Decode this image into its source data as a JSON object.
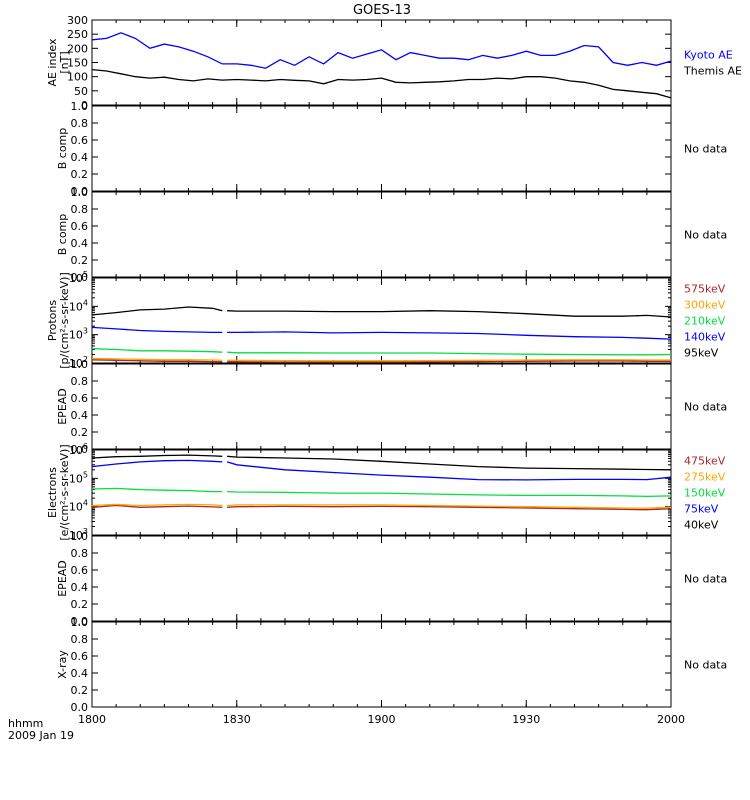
{
  "title": "GOES-13",
  "footer": {
    "time_label": "hhmm",
    "date_label": "2009 Jan 19"
  },
  "x_axis": {
    "range": [
      0,
      120
    ],
    "tick_values": [
      0,
      30,
      60,
      90,
      120
    ],
    "tick_labels": [
      "1800",
      "1830",
      "1900",
      "1930",
      "2000"
    ],
    "unit_note": "minutes after 18:00 UT"
  },
  "chart_data": [
    {
      "type": "line",
      "id": "ae",
      "ylabel": [
        "AE index",
        "[nT]"
      ],
      "ylim": [
        0,
        300
      ],
      "yticks": [
        0,
        50,
        100,
        150,
        200,
        250,
        300
      ],
      "ytick_labels": [
        "0",
        "50",
        "100",
        "150",
        "200",
        "250",
        "300"
      ],
      "x": [
        0,
        3,
        6,
        9,
        12,
        15,
        18,
        21,
        24,
        27,
        30,
        33,
        36,
        39,
        42,
        45,
        48,
        51,
        54,
        57,
        60,
        63,
        66,
        69,
        72,
        75,
        78,
        81,
        84,
        87,
        90,
        93,
        96,
        99,
        102,
        105,
        108,
        111,
        114,
        117,
        120
      ],
      "series": [
        {
          "name": "Kyoto AE",
          "color": "#0000ff",
          "values": [
            230,
            235,
            255,
            235,
            200,
            215,
            205,
            190,
            170,
            145,
            145,
            140,
            130,
            160,
            140,
            170,
            145,
            185,
            165,
            180,
            195,
            160,
            185,
            175,
            165,
            165,
            160,
            175,
            165,
            175,
            190,
            175,
            175,
            190,
            210,
            205,
            150,
            140,
            150,
            140,
            155
          ]
        },
        {
          "name": "Themis AE",
          "color": "#000000",
          "values": [
            125,
            120,
            110,
            100,
            95,
            98,
            90,
            85,
            92,
            88,
            90,
            88,
            85,
            90,
            87,
            85,
            75,
            90,
            88,
            90,
            95,
            80,
            78,
            80,
            82,
            85,
            90,
            90,
            95,
            92,
            100,
            100,
            95,
            85,
            80,
            70,
            55,
            50,
            45,
            40,
            25
          ]
        }
      ]
    },
    {
      "type": "line",
      "id": "bcomp1",
      "ylabel": [
        "B comp"
      ],
      "ylim": [
        0,
        1
      ],
      "yticks": [
        0,
        0.2,
        0.4,
        0.6,
        0.8,
        1.0
      ],
      "ytick_labels": [
        "0.0",
        "0.2",
        "0.4",
        "0.6",
        "0.8",
        "1.0"
      ],
      "note": "No data",
      "series": []
    },
    {
      "type": "line",
      "id": "bcomp2",
      "ylabel": [
        "B comp"
      ],
      "ylim": [
        0,
        1
      ],
      "yticks": [
        0,
        0.2,
        0.4,
        0.6,
        0.8,
        1.0
      ],
      "ytick_labels": [
        "0.0",
        "0.2",
        "0.4",
        "0.6",
        "0.8",
        "1.0"
      ],
      "note": "No data",
      "series": []
    },
    {
      "type": "line",
      "id": "protons",
      "scale": "log",
      "ylabel": [
        "Protons",
        "[p/(cm²-s-sr-keV)]"
      ],
      "ylim": [
        100,
        100000
      ],
      "yticks": [
        100,
        1000,
        10000,
        100000
      ],
      "ytick_labels": [
        [
          "10",
          "2"
        ],
        [
          "10",
          "3"
        ],
        [
          "10",
          "4"
        ],
        [
          "10",
          "5"
        ]
      ],
      "gap": [
        27,
        28
      ],
      "x": [
        0,
        5,
        10,
        15,
        20,
        25,
        27,
        28,
        30,
        40,
        50,
        60,
        70,
        80,
        90,
        100,
        110,
        115,
        120
      ],
      "series": [
        {
          "name": "575keV",
          "color": "#a52a2a",
          "values": [
            130,
            125,
            120,
            115,
            115,
            112,
            110,
            110,
            110,
            108,
            108,
            108,
            110,
            112,
            115,
            118,
            118,
            115,
            115
          ]
        },
        {
          "name": "300keV",
          "color": "#ffa500",
          "values": [
            145,
            140,
            135,
            130,
            130,
            128,
            125,
            125,
            125,
            122,
            120,
            120,
            122,
            125,
            128,
            130,
            130,
            128,
            128
          ]
        },
        {
          "name": "210keV",
          "color": "#00e040",
          "values": [
            320,
            300,
            270,
            270,
            260,
            250,
            240,
            240,
            230,
            230,
            225,
            225,
            225,
            215,
            205,
            200,
            195,
            195,
            200
          ]
        },
        {
          "name": "140keV",
          "color": "#0000ff",
          "values": [
            1800,
            1600,
            1400,
            1300,
            1250,
            1200,
            1200,
            1200,
            1200,
            1250,
            1150,
            1200,
            1150,
            1100,
            950,
            850,
            800,
            750,
            700
          ]
        },
        {
          "name": "95keV",
          "color": "#000000",
          "values": [
            5000,
            6000,
            7500,
            8000,
            9500,
            8500,
            7000,
            7000,
            6800,
            6800,
            6500,
            6500,
            7000,
            6500,
            5500,
            4500,
            4500,
            4800,
            4200
          ]
        }
      ]
    },
    {
      "type": "line",
      "id": "epead1",
      "ylabel": [
        "EPEAD"
      ],
      "ylim": [
        0,
        1
      ],
      "yticks": [
        0,
        0.2,
        0.4,
        0.6,
        0.8,
        1.0
      ],
      "ytick_labels": [
        "0.0",
        "0.2",
        "0.4",
        "0.6",
        "0.8",
        "1.0"
      ],
      "note": "No data",
      "series": []
    },
    {
      "type": "line",
      "id": "electrons",
      "scale": "log",
      "ylabel": [
        "Electrons",
        "[e/(cm²-s-sr-keV)]"
      ],
      "ylim": [
        1000,
        1000000
      ],
      "yticks": [
        1000,
        10000,
        100000,
        1000000
      ],
      "ytick_labels": [
        [
          "10",
          "3"
        ],
        [
          "10",
          "4"
        ],
        [
          "10",
          "5"
        ],
        [
          "10",
          "6"
        ]
      ],
      "gap": [
        27,
        28
      ],
      "x": [
        0,
        5,
        10,
        15,
        20,
        25,
        27,
        28,
        30,
        40,
        50,
        60,
        70,
        80,
        90,
        100,
        110,
        115,
        120
      ],
      "series": [
        {
          "name": "475keV",
          "color": "#a52a2a",
          "values": [
            9500,
            11000,
            9500,
            10000,
            10500,
            9800,
            9500,
            9500,
            10000,
            10200,
            10000,
            10200,
            10000,
            9500,
            9000,
            8500,
            8000,
            7800,
            8500
          ]
        },
        {
          "name": "275keV",
          "color": "#ffa500",
          "values": [
            11000,
            12000,
            11000,
            11500,
            12000,
            11500,
            11000,
            11000,
            11500,
            11500,
            11500,
            11500,
            11000,
            10500,
            10000,
            9500,
            9000,
            8800,
            9500
          ]
        },
        {
          "name": "150keV",
          "color": "#00e040",
          "values": [
            42000,
            44000,
            40000,
            38000,
            37000,
            34000,
            34000,
            34000,
            33000,
            32000,
            30000,
            30000,
            28000,
            26000,
            25000,
            25000,
            24000,
            23000,
            24000
          ]
        },
        {
          "name": "75keV",
          "color": "#0000ff",
          "values": [
            260000,
            320000,
            380000,
            420000,
            430000,
            400000,
            380000,
            380000,
            300000,
            200000,
            160000,
            130000,
            110000,
            90000,
            88000,
            92000,
            92000,
            90000,
            110000
          ]
        },
        {
          "name": "40keV",
          "color": "#000000",
          "values": [
            520000,
            580000,
            600000,
            640000,
            660000,
            620000,
            600000,
            600000,
            560000,
            520000,
            480000,
            400000,
            320000,
            260000,
            230000,
            220000,
            210000,
            205000,
            200000
          ]
        }
      ]
    },
    {
      "type": "line",
      "id": "epead2",
      "ylabel": [
        "EPEAD"
      ],
      "ylim": [
        0,
        1
      ],
      "yticks": [
        0,
        0.2,
        0.4,
        0.6,
        0.8,
        1.0
      ],
      "ytick_labels": [
        "0.0",
        "0.2",
        "0.4",
        "0.6",
        "0.8",
        "1.0"
      ],
      "note": "No data",
      "series": []
    },
    {
      "type": "line",
      "id": "xray",
      "ylabel": [
        "X-ray"
      ],
      "ylim": [
        0,
        1
      ],
      "yticks": [
        0,
        0.2,
        0.4,
        0.6,
        0.8,
        1.0
      ],
      "ytick_labels": [
        "0.0",
        "0.2",
        "0.4",
        "0.6",
        "0.8",
        "1.0"
      ],
      "note": "No data",
      "series": []
    }
  ]
}
